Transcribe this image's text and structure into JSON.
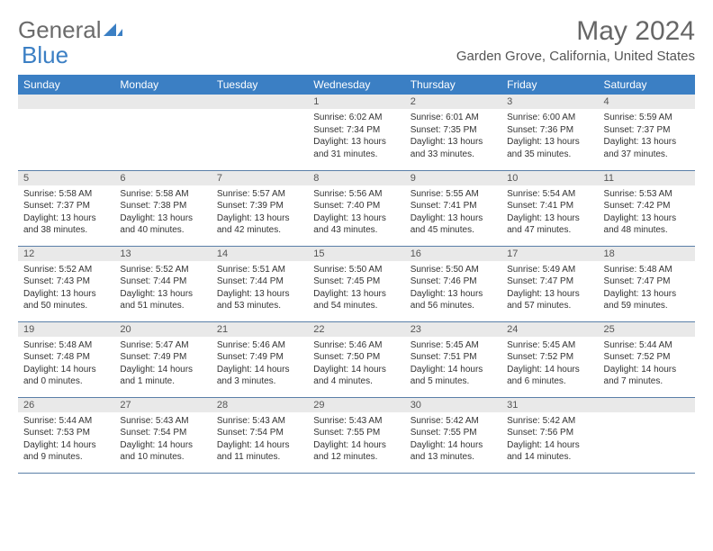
{
  "logo": {
    "text1": "General",
    "text2": "Blue"
  },
  "title": "May 2024",
  "location": "Garden Grove, California, United States",
  "colors": {
    "header_bg": "#3b7fc4",
    "header_text": "#ffffff",
    "daynum_bg": "#e9e9e9",
    "border": "#5a7fa8",
    "logo_gray": "#6b6b6b",
    "logo_blue": "#3b7fc4"
  },
  "days": [
    "Sunday",
    "Monday",
    "Tuesday",
    "Wednesday",
    "Thursday",
    "Friday",
    "Saturday"
  ],
  "weeks": [
    [
      null,
      null,
      null,
      {
        "n": "1",
        "sr": "6:02 AM",
        "ss": "7:34 PM",
        "dl": "13 hours and 31 minutes."
      },
      {
        "n": "2",
        "sr": "6:01 AM",
        "ss": "7:35 PM",
        "dl": "13 hours and 33 minutes."
      },
      {
        "n": "3",
        "sr": "6:00 AM",
        "ss": "7:36 PM",
        "dl": "13 hours and 35 minutes."
      },
      {
        "n": "4",
        "sr": "5:59 AM",
        "ss": "7:37 PM",
        "dl": "13 hours and 37 minutes."
      }
    ],
    [
      {
        "n": "5",
        "sr": "5:58 AM",
        "ss": "7:37 PM",
        "dl": "13 hours and 38 minutes."
      },
      {
        "n": "6",
        "sr": "5:58 AM",
        "ss": "7:38 PM",
        "dl": "13 hours and 40 minutes."
      },
      {
        "n": "7",
        "sr": "5:57 AM",
        "ss": "7:39 PM",
        "dl": "13 hours and 42 minutes."
      },
      {
        "n": "8",
        "sr": "5:56 AM",
        "ss": "7:40 PM",
        "dl": "13 hours and 43 minutes."
      },
      {
        "n": "9",
        "sr": "5:55 AM",
        "ss": "7:41 PM",
        "dl": "13 hours and 45 minutes."
      },
      {
        "n": "10",
        "sr": "5:54 AM",
        "ss": "7:41 PM",
        "dl": "13 hours and 47 minutes."
      },
      {
        "n": "11",
        "sr": "5:53 AM",
        "ss": "7:42 PM",
        "dl": "13 hours and 48 minutes."
      }
    ],
    [
      {
        "n": "12",
        "sr": "5:52 AM",
        "ss": "7:43 PM",
        "dl": "13 hours and 50 minutes."
      },
      {
        "n": "13",
        "sr": "5:52 AM",
        "ss": "7:44 PM",
        "dl": "13 hours and 51 minutes."
      },
      {
        "n": "14",
        "sr": "5:51 AM",
        "ss": "7:44 PM",
        "dl": "13 hours and 53 minutes."
      },
      {
        "n": "15",
        "sr": "5:50 AM",
        "ss": "7:45 PM",
        "dl": "13 hours and 54 minutes."
      },
      {
        "n": "16",
        "sr": "5:50 AM",
        "ss": "7:46 PM",
        "dl": "13 hours and 56 minutes."
      },
      {
        "n": "17",
        "sr": "5:49 AM",
        "ss": "7:47 PM",
        "dl": "13 hours and 57 minutes."
      },
      {
        "n": "18",
        "sr": "5:48 AM",
        "ss": "7:47 PM",
        "dl": "13 hours and 59 minutes."
      }
    ],
    [
      {
        "n": "19",
        "sr": "5:48 AM",
        "ss": "7:48 PM",
        "dl": "14 hours and 0 minutes."
      },
      {
        "n": "20",
        "sr": "5:47 AM",
        "ss": "7:49 PM",
        "dl": "14 hours and 1 minute."
      },
      {
        "n": "21",
        "sr": "5:46 AM",
        "ss": "7:49 PM",
        "dl": "14 hours and 3 minutes."
      },
      {
        "n": "22",
        "sr": "5:46 AM",
        "ss": "7:50 PM",
        "dl": "14 hours and 4 minutes."
      },
      {
        "n": "23",
        "sr": "5:45 AM",
        "ss": "7:51 PM",
        "dl": "14 hours and 5 minutes."
      },
      {
        "n": "24",
        "sr": "5:45 AM",
        "ss": "7:52 PM",
        "dl": "14 hours and 6 minutes."
      },
      {
        "n": "25",
        "sr": "5:44 AM",
        "ss": "7:52 PM",
        "dl": "14 hours and 7 minutes."
      }
    ],
    [
      {
        "n": "26",
        "sr": "5:44 AM",
        "ss": "7:53 PM",
        "dl": "14 hours and 9 minutes."
      },
      {
        "n": "27",
        "sr": "5:43 AM",
        "ss": "7:54 PM",
        "dl": "14 hours and 10 minutes."
      },
      {
        "n": "28",
        "sr": "5:43 AM",
        "ss": "7:54 PM",
        "dl": "14 hours and 11 minutes."
      },
      {
        "n": "29",
        "sr": "5:43 AM",
        "ss": "7:55 PM",
        "dl": "14 hours and 12 minutes."
      },
      {
        "n": "30",
        "sr": "5:42 AM",
        "ss": "7:55 PM",
        "dl": "14 hours and 13 minutes."
      },
      {
        "n": "31",
        "sr": "5:42 AM",
        "ss": "7:56 PM",
        "dl": "14 hours and 14 minutes."
      },
      null
    ]
  ],
  "labels": {
    "sunrise": "Sunrise: ",
    "sunset": "Sunset: ",
    "daylight": "Daylight: "
  }
}
